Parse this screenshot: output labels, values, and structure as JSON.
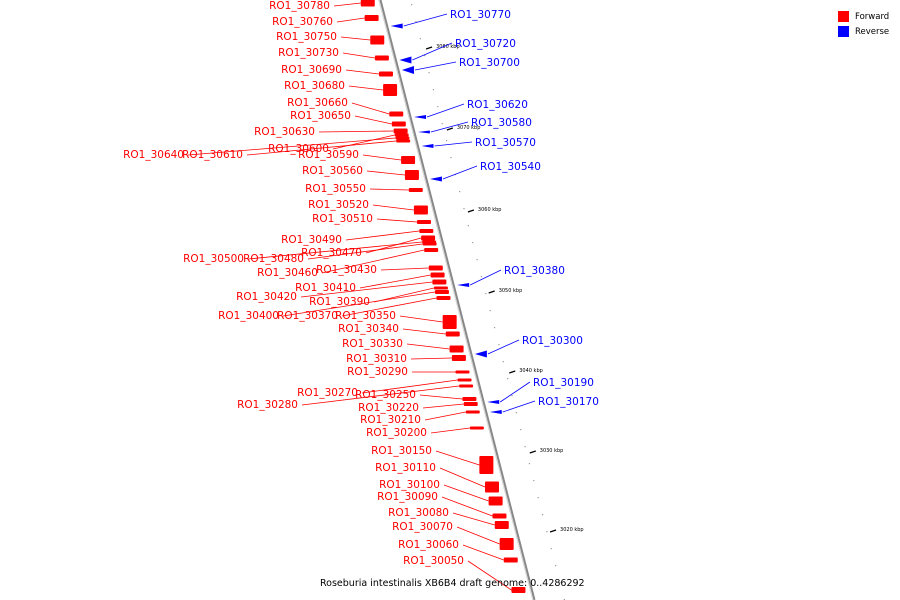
{
  "legend": {
    "forward_label": "Forward",
    "reverse_label": "Reverse",
    "forward_color": "#ff0000",
    "reverse_color": "#0000ff"
  },
  "caption": "Roseburia intestinalis XB6B4 draft genome: 0..4286292",
  "ticks": [
    "3080 kbp",
    "3070 kbp",
    "3060 kbp",
    "3050 kbp",
    "3040 kbp",
    "3030 kbp",
    "3020 kbp"
  ],
  "forward_genes": [
    "RO1_30780",
    "RO1_30760",
    "RO1_30750",
    "RO1_30730",
    "RO1_30690",
    "RO1_30680",
    "RO1_30660",
    "RO1_30650",
    "RO1_30630",
    "RO1_30600",
    "RO1_30640",
    "RO1_30610",
    "RO1_30590",
    "RO1_30560",
    "RO1_30550",
    "RO1_30520",
    "RO1_30510",
    "RO1_30490",
    "RO1_30470",
    "RO1_30500",
    "RO1_30480",
    "RO1_30460",
    "RO1_30430",
    "RO1_30410",
    "RO1_30420",
    "RO1_30390",
    "RO1_30400",
    "RO1_30370",
    "RO1_30350",
    "RO1_30340",
    "RO1_30330",
    "RO1_30310",
    "RO1_30290",
    "RO1_30270",
    "RO1_30280",
    "RO1_30250",
    "RO1_30220",
    "RO1_30210",
    "RO1_30200",
    "RO1_30150",
    "RO1_30110",
    "RO1_30100",
    "RO1_30090",
    "RO1_30080",
    "RO1_30070",
    "RO1_30060",
    "RO1_30050"
  ],
  "reverse_genes": [
    "RO1_30770",
    "RO1_30720",
    "RO1_30700",
    "RO1_30620",
    "RO1_30580",
    "RO1_30570",
    "RO1_30540",
    "RO1_30380",
    "RO1_30300",
    "RO1_30190",
    "RO1_30170"
  ]
}
